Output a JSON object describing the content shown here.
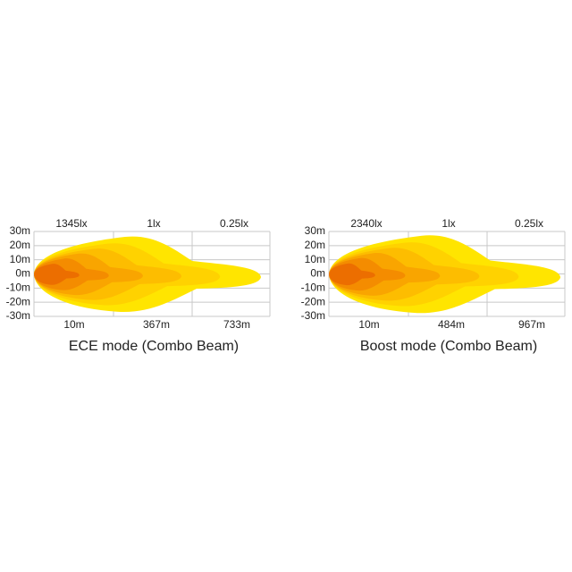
{
  "panels": [
    {
      "title": "ECE mode (Combo Beam)",
      "lux_labels": [
        "1345lx",
        "1lx",
        "0.25lx"
      ],
      "y_labels": [
        "30m",
        "20m",
        "10m",
        "0m",
        "-10m",
        "-20m",
        "-30m"
      ],
      "x_labels": [
        "10m",
        "367m",
        "733m"
      ]
    },
    {
      "title": "Boost mode (Combo Beam)",
      "lux_labels": [
        "2340lx",
        "1lx",
        "0.25lx"
      ],
      "y_labels": [
        "30m",
        "20m",
        "10m",
        "0m",
        "-10m",
        "-20m",
        "-30m"
      ],
      "x_labels": [
        "10m",
        "484m",
        "967m"
      ]
    }
  ]
}
